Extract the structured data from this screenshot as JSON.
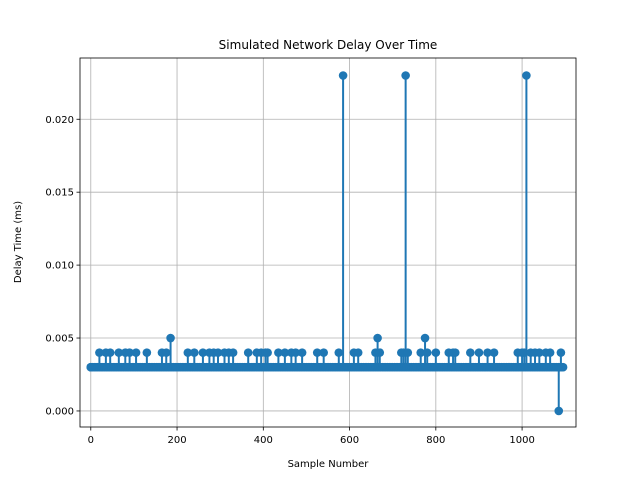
{
  "chart_data": {
    "type": "line",
    "title": "Simulated Network Delay Over Time",
    "xlabel": "Sample Number",
    "ylabel": "Delay Time (ms)",
    "xlim": [
      -25,
      1125
    ],
    "ylim": [
      -0.0011,
      0.0242
    ],
    "xticks": [
      0,
      200,
      400,
      600,
      800,
      1000
    ],
    "yticks": [
      0.0,
      0.005,
      0.01,
      0.015,
      0.02
    ],
    "xtick_labels": [
      "0",
      "200",
      "400",
      "600",
      "800",
      "1000"
    ],
    "ytick_labels": [
      "0.000",
      "0.005",
      "0.010",
      "0.015",
      "0.020"
    ],
    "grid": true,
    "legend": "none",
    "baseline": 0.003,
    "series_color": "#1f77b4",
    "series": [
      {
        "x": [
          0,
          20,
          35,
          45,
          65,
          80,
          90,
          105,
          130,
          165,
          175,
          185,
          225,
          240,
          260,
          275,
          285,
          295,
          310,
          320,
          330,
          365,
          385,
          395,
          405,
          410,
          435,
          450,
          465,
          475,
          490,
          525,
          540,
          575,
          585,
          610,
          620,
          660,
          665,
          670,
          720,
          725,
          730,
          735,
          765,
          775,
          780,
          800,
          830,
          840,
          845,
          880,
          900,
          920,
          935,
          990,
          1000,
          1005,
          1010,
          1020,
          1030,
          1040,
          1055,
          1065,
          1085,
          1090,
          1095
        ],
        "y": [
          0.003,
          0.004,
          0.004,
          0.004,
          0.004,
          0.004,
          0.004,
          0.004,
          0.004,
          0.004,
          0.004,
          0.005,
          0.004,
          0.004,
          0.004,
          0.004,
          0.004,
          0.004,
          0.004,
          0.004,
          0.004,
          0.004,
          0.004,
          0.004,
          0.004,
          0.004,
          0.004,
          0.004,
          0.004,
          0.004,
          0.004,
          0.004,
          0.004,
          0.004,
          0.023,
          0.004,
          0.004,
          0.004,
          0.005,
          0.004,
          0.004,
          0.004,
          0.023,
          0.004,
          0.004,
          0.005,
          0.004,
          0.004,
          0.004,
          0.004,
          0.004,
          0.004,
          0.004,
          0.004,
          0.004,
          0.004,
          0.004,
          0.004,
          0.023,
          0.004,
          0.004,
          0.004,
          0.004,
          0.004,
          0.0,
          0.004,
          0.003
        ]
      }
    ]
  }
}
